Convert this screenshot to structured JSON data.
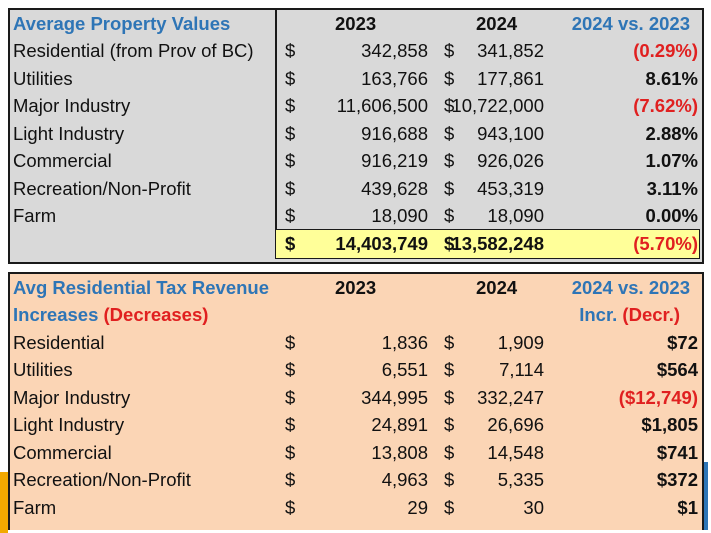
{
  "property": {
    "title": "Average Property Values",
    "year1": "2023",
    "year2": "2024",
    "compare": "2024 vs. 2023",
    "currency": "$",
    "rows": [
      {
        "label": "Residential (from Prov of BC)",
        "v2023": "342,858",
        "v2024": "341,852",
        "change": "(0.29%)",
        "negative": true
      },
      {
        "label": "Utilities",
        "v2023": "163,766",
        "v2024": "177,861",
        "change": "8.61%",
        "negative": false
      },
      {
        "label": "Major Industry",
        "v2023": "11,606,500",
        "v2024": "10,722,000",
        "change": "(7.62%)",
        "negative": true
      },
      {
        "label": "Light Industry",
        "v2023": "916,688",
        "v2024": "943,100",
        "change": "2.88%",
        "negative": false
      },
      {
        "label": "Commercial",
        "v2023": "916,219",
        "v2024": "926,026",
        "change": "1.07%",
        "negative": false
      },
      {
        "label": "Recreation/Non-Profit",
        "v2023": "439,628",
        "v2024": "453,319",
        "change": "3.11%",
        "negative": false
      },
      {
        "label": "Farm",
        "v2023": "18,090",
        "v2024": "18,090",
        "change": "0.00%",
        "negative": false
      }
    ],
    "total": {
      "v2023": "14,403,749",
      "v2024": "13,582,248",
      "change": "(5.70%)"
    }
  },
  "revenue": {
    "title_line1": "Avg Residential Tax Revenue",
    "title_line2_a": "Increases",
    "title_line2_b": "(Decreases)",
    "year1": "2023",
    "year2": "2024",
    "compare": "2024 vs. 2023",
    "compare2_a": "Incr.",
    "compare2_b": "(Decr.)",
    "currency": "$",
    "rows": [
      {
        "label": "Residential",
        "v2023": "1,836",
        "v2024": "1,909",
        "change": "$72",
        "negative": false
      },
      {
        "label": "Utilities",
        "v2023": "6,551",
        "v2024": "7,114",
        "change": "$564",
        "negative": false
      },
      {
        "label": "Major Industry",
        "v2023": "344,995",
        "v2024": "332,247",
        "change": "($12,749)",
        "negative": true
      },
      {
        "label": "Light Industry",
        "v2023": "24,891",
        "v2024": "26,696",
        "change": "$1,805",
        "negative": false
      },
      {
        "label": "Commercial",
        "v2023": "13,808",
        "v2024": "14,548",
        "change": "$741",
        "negative": false
      },
      {
        "label": "Recreation/Non-Profit",
        "v2023": "4,963",
        "v2024": "5,335",
        "change": "$372",
        "negative": false
      },
      {
        "label": "Farm",
        "v2023": "29",
        "v2024": "30",
        "change": "$1",
        "negative": false
      }
    ]
  }
}
